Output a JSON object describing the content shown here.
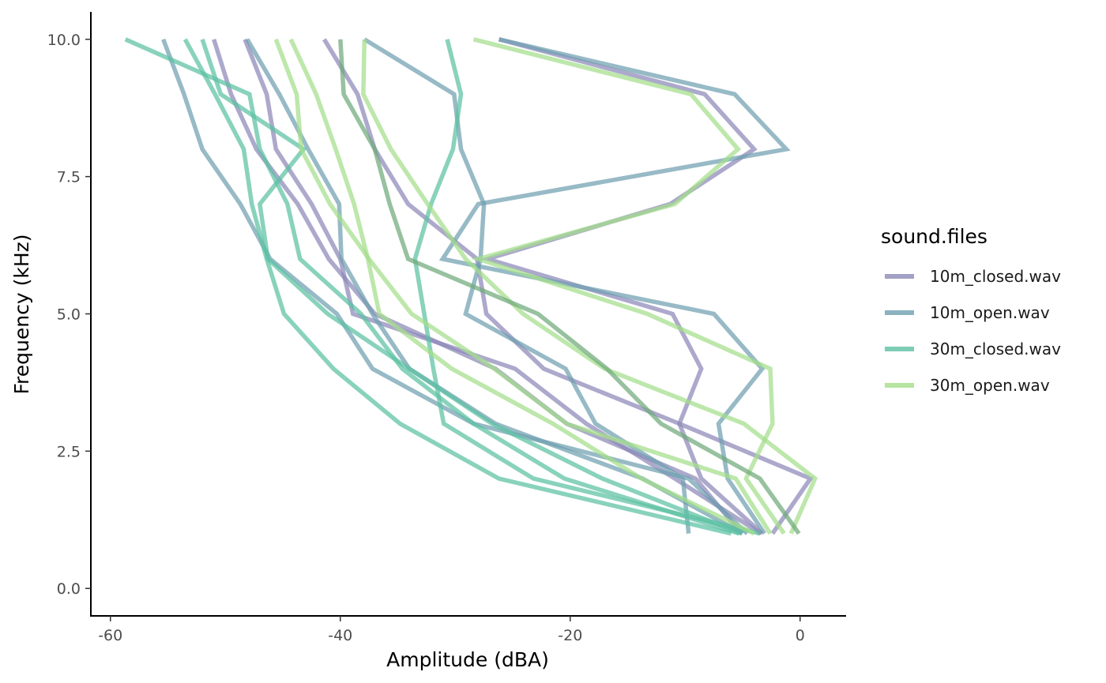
{
  "chart_data": {
    "type": "line",
    "title": "",
    "xlabel": "Amplitude (dBA)",
    "ylabel": "Frequency (kHz)",
    "xlim": [
      -61.7,
      4.0
    ],
    "ylim": [
      -0.5,
      10.5
    ],
    "x_ticks": [
      -60,
      -40,
      -20,
      0
    ],
    "x_tick_labels": [
      "-60",
      "-40",
      "-20",
      "0"
    ],
    "y_ticks": [
      0,
      2.5,
      5,
      7.5,
      10
    ],
    "y_tick_labels": [
      "0.0",
      "2.5",
      "5.0",
      "7.5",
      "10.0"
    ],
    "grid": false,
    "legend": {
      "title": "sound.files",
      "position": "right",
      "items": [
        {
          "label": "10m_closed.wav",
          "color": "#8c88b8"
        },
        {
          "label": "10m_open.wav",
          "color": "#6f9fb0"
        },
        {
          "label": "30m_closed.wav",
          "color": "#5cc0a2"
        },
        {
          "label": "30m_open.wav",
          "color": "#a3de8a"
        }
      ]
    },
    "y_values": [
      1,
      2,
      3,
      4,
      5,
      6,
      7,
      8,
      9,
      10
    ],
    "series": [
      {
        "group": "10m_closed.wav",
        "color": "#8c88b8",
        "x": [
          -2.4,
          0.9,
          -10.5,
          -22.3,
          -27.3,
          -28.1,
          -34.1,
          -37.0,
          -38.5,
          -41.4
        ]
      },
      {
        "group": "10m_closed.wav",
        "color": "#8c88b8",
        "x": [
          -5.1,
          -9.1,
          -20.3,
          -26.5,
          -37.0,
          -41.0,
          -43.7,
          -47.3,
          -49.5,
          -51.0
        ]
      },
      {
        "group": "10m_closed.wav",
        "color": "#8c88b8",
        "x": [
          -3.3,
          -8.6,
          -10.5,
          -8.6,
          -11.1,
          -27.2,
          -11.3,
          -4.0,
          -8.3,
          -26.2
        ]
      },
      {
        "group": "10m_closed.wav",
        "color": "#8c88b8",
        "x": [
          -3.4,
          -10.9,
          -18.6,
          -24.8,
          -38.9,
          -40.0,
          -42.5,
          -45.6,
          -46.4,
          -48.3
        ]
      },
      {
        "group": "10m_open.wav",
        "color": "#6f9fb0",
        "x": [
          -9.7,
          -10.2,
          -17.8,
          -20.4,
          -29.1,
          -27.8,
          -27.5,
          -29.5,
          -30.1,
          -37.9
        ]
      },
      {
        "group": "10m_open.wav",
        "color": "#6f9fb0",
        "x": [
          -5.0,
          -13.7,
          -26.5,
          -34.0,
          -37.2,
          -39.9,
          -40.1,
          -42.8,
          -45.3,
          -48.1
        ]
      },
      {
        "group": "10m_open.wav",
        "color": "#6f9fb0",
        "x": [
          -3.1,
          -6.3,
          -7.1,
          -3.3,
          -7.5,
          -31.1,
          -28.0,
          -1.2,
          -5.7,
          -26.2
        ]
      },
      {
        "group": "10m_open.wav",
        "color": "#6f9fb0",
        "x": [
          -4.6,
          -9.7,
          -28.4,
          -37.2,
          -40.3,
          -46.1,
          -48.7,
          -52.0,
          -53.6,
          -55.4
        ]
      },
      {
        "group": "30m_closed.wav",
        "color": "#5cc0a2",
        "x": [
          -5.1,
          -17.2,
          -26.8,
          -34.0,
          -41.1,
          -46.3,
          -47.0,
          -43.2,
          -50.4,
          -52.0
        ]
      },
      {
        "group": "30m_closed.wav",
        "color": "#5cc0a2",
        "x": [
          -3.5,
          -23.2,
          -31.0,
          -31.9,
          -32.7,
          -33.5,
          -32.1,
          -30.2,
          -29.5,
          -30.7
        ]
      },
      {
        "group": "30m_closed.wav",
        "color": "#5cc0a2",
        "x": [
          -6.0,
          -26.2,
          -34.8,
          -40.6,
          -44.9,
          -46.4,
          -47.7,
          -48.4,
          -50.9,
          -53.5
        ]
      },
      {
        "group": "30m_closed.wav",
        "color": "#5cc0a2",
        "x": [
          -5.3,
          -20.5,
          -28.4,
          -34.6,
          -38.2,
          -43.5,
          -44.6,
          -47.0,
          -47.9,
          -58.7
        ]
      },
      {
        "group": "30m_open.wav",
        "color": "#a3de8a",
        "x": [
          -0.8,
          1.3,
          -4.9,
          -17.0,
          -24.1,
          -29.1,
          -32.4,
          -35.6,
          -38.0,
          -37.9
        ]
      },
      {
        "group": "30m_open.wav",
        "color": "#a3de8a",
        "x": [
          -2.6,
          -5.6,
          -20.3,
          -26.6,
          -33.8,
          -37.5,
          -40.9,
          -43.4,
          -43.8,
          -45.6
        ]
      },
      {
        "group": "30m_open.wav",
        "color": "#a3de8a",
        "x": [
          -4.0,
          -13.8,
          -21.5,
          -30.3,
          -36.6,
          -37.6,
          -38.8,
          -40.4,
          -42.1,
          -44.3
        ]
      },
      {
        "group": "30m_open.wav",
        "color": "#a3de8a",
        "x": [
          -1.4,
          -4.7,
          -2.4,
          -2.6,
          -13.3,
          -28.0,
          -10.9,
          -5.4,
          -9.5,
          -28.4
        ]
      },
      {
        "group": "30m_open.wav",
        "color": "#6fa97a",
        "x": [
          -0.1,
          -3.5,
          -12.1,
          -16.8,
          -22.8,
          -34.1,
          -35.7,
          -37.0,
          -39.7,
          -40.0
        ]
      }
    ]
  }
}
